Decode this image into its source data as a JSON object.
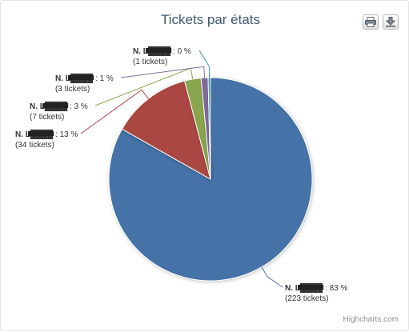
{
  "chart_data": {
    "type": "pie",
    "title": "Tickets par états",
    "colors": [
      "#4572a7",
      "#aa4643",
      "#89a54e",
      "#80699b",
      "#3d96ae"
    ],
    "slices": [
      {
        "name": "N. L████",
        "percent_label": "83 %",
        "count_label": "(223 tickets)",
        "value": 223
      },
      {
        "name": "N. L████",
        "percent_label": "13 %",
        "count_label": "(34 tickets)",
        "value": 34
      },
      {
        "name": "N. L████",
        "percent_label": "3 %",
        "count_label": "(7 tickets)",
        "value": 7
      },
      {
        "name": "N. L████",
        "percent_label": "1 %",
        "count_label": "(3 tickets)",
        "value": 3
      },
      {
        "name": "N. L████",
        "percent_label": "0 %",
        "count_label": "(1 tickets)",
        "value": 1
      }
    ]
  },
  "toolbar": {
    "print_icon": "print-icon",
    "download_icon": "download-icon"
  },
  "credits": "Highcharts.com"
}
